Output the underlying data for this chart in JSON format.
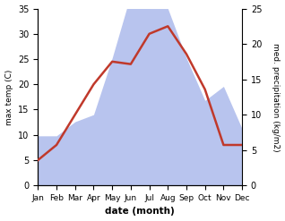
{
  "months": [
    "Jan",
    "Feb",
    "Mar",
    "Apr",
    "May",
    "Jun",
    "Jul",
    "Aug",
    "Sep",
    "Oct",
    "Nov",
    "Dec"
  ],
  "temperature": [
    5.0,
    8.0,
    14.0,
    20.0,
    24.5,
    24.0,
    30.0,
    31.5,
    26.0,
    19.0,
    8.0,
    8.0
  ],
  "precipitation": [
    7,
    7,
    9,
    10,
    18,
    27,
    25,
    25,
    18,
    12,
    14,
    8
  ],
  "temp_color": "#c0392b",
  "precip_color": "#b8c4ee",
  "temp_ylim": [
    0,
    35
  ],
  "precip_ylim": [
    0,
    25
  ],
  "temp_yticks": [
    0,
    5,
    10,
    15,
    20,
    25,
    30,
    35
  ],
  "precip_yticks": [
    0,
    5,
    10,
    15,
    20,
    25
  ],
  "ylabel_left": "max temp (C)",
  "ylabel_right": "med. precipitation (kg/m2)",
  "xlabel": "date (month)",
  "background_color": "#ffffff",
  "temp_linewidth": 1.8,
  "figsize": [
    3.18,
    2.47
  ],
  "dpi": 100
}
